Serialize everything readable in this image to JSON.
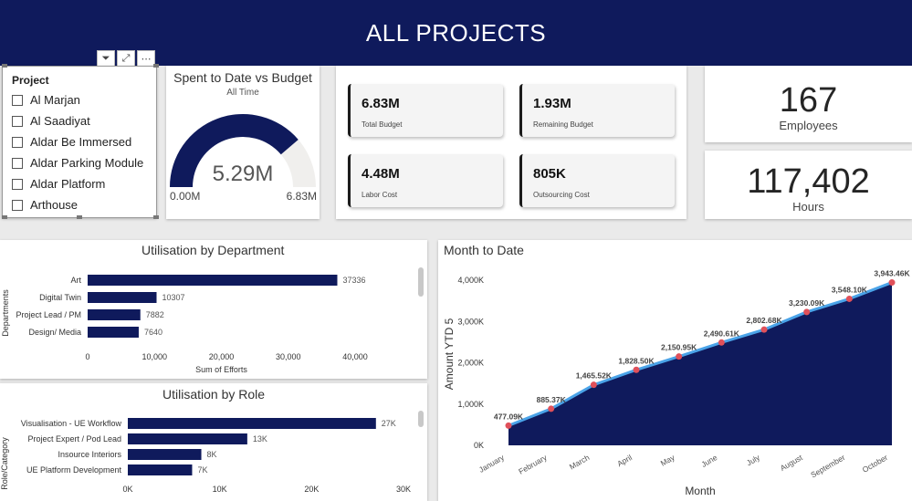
{
  "header": {
    "title": "ALL PROJECTS"
  },
  "slicer": {
    "title": "Project",
    "items": [
      {
        "label": "Al Marjan"
      },
      {
        "label": "Al Saadiyat"
      },
      {
        "label": "Aldar Be Immersed"
      },
      {
        "label": "Aldar Parking Module"
      },
      {
        "label": "Aldar Platform"
      },
      {
        "label": "Arthouse"
      }
    ],
    "tools": {
      "filter": "⏷",
      "focus": "⤢",
      "more": "⋯"
    }
  },
  "gauge": {
    "title": "Spent to Date vs Budget",
    "subtitle": "All Time",
    "value_label": "5.29M",
    "min_label": "0.00M",
    "max_label": "6.83M",
    "value": 5.29,
    "max": 6.83,
    "fill_color": "#0f1a5c",
    "track_color": "#f0efed"
  },
  "kpis": [
    {
      "value": "6.83M",
      "label": "Total Budget"
    },
    {
      "value": "1.93M",
      "label": "Remaining Budget"
    },
    {
      "value": "4.48M",
      "label": "Labor Cost"
    },
    {
      "value": "805K",
      "label": "Outsourcing Cost"
    }
  ],
  "employees": {
    "value": "167",
    "label": "Employees"
  },
  "hours": {
    "value": "117,402",
    "label": "Hours"
  },
  "chart_data": [
    {
      "type": "bar",
      "orientation": "horizontal",
      "title": "Utilisation by Department",
      "ylabel": "Departments",
      "xlabel": "Sum of Efforts",
      "categories": [
        "Art",
        "Digital Twin",
        "Project Lead / PM",
        "Design/ Media"
      ],
      "values": [
        37336,
        10307,
        7882,
        7640
      ],
      "value_labels": [
        "37336",
        "10307",
        "7882",
        "7640"
      ],
      "xlim": [
        0,
        40000
      ],
      "ticks": [
        0,
        10000,
        20000,
        30000,
        40000
      ],
      "tick_labels": [
        "0",
        "10,000",
        "20,000",
        "30,000",
        "40,000"
      ],
      "color": "#0f1a5c"
    },
    {
      "type": "bar",
      "orientation": "horizontal",
      "title": "Utilisation by Role",
      "ylabel": "Role/Category",
      "xlabel": "",
      "categories": [
        "Visualisation - UE Workflow",
        "Project Expert / Pod Lead",
        "Insource Interiors",
        "UE Platform Development"
      ],
      "values": [
        27000,
        13000,
        8000,
        7000
      ],
      "value_labels": [
        "27K",
        "13K",
        "8K",
        "7K"
      ],
      "xlim": [
        0,
        30000
      ],
      "ticks": [
        0,
        10000,
        20000,
        30000
      ],
      "tick_labels": [
        "0K",
        "10K",
        "20K",
        "30K"
      ],
      "color": "#0f1a5c"
    },
    {
      "type": "area",
      "title": "Month to Date",
      "xlabel": "Month",
      "ylabel": "Amount YTD 5",
      "categories": [
        "January",
        "February",
        "March",
        "April",
        "May",
        "June",
        "July",
        "August",
        "September",
        "October"
      ],
      "values": [
        477.09,
        885.37,
        1465.52,
        1828.5,
        2150.95,
        2490.61,
        2802.68,
        3230.09,
        3548.1,
        3943.46
      ],
      "value_labels": [
        "477.09K",
        "885.37K",
        "1,465.52K",
        "1,828.50K",
        "2,150.95K",
        "2,490.61K",
        "2,802.68K",
        "3,230.09K",
        "3,548.10K",
        "3,943.46K"
      ],
      "ylim": [
        0,
        4000
      ],
      "ticks": [
        0,
        1000,
        2000,
        3000,
        4000
      ],
      "tick_labels": [
        "0K",
        "1,000K",
        "2,000K",
        "3,000K",
        "4,000K"
      ],
      "fill_color": "#0f1a5c",
      "line_color": "#4aa3e8",
      "marker_color": "#e0505a"
    }
  ]
}
